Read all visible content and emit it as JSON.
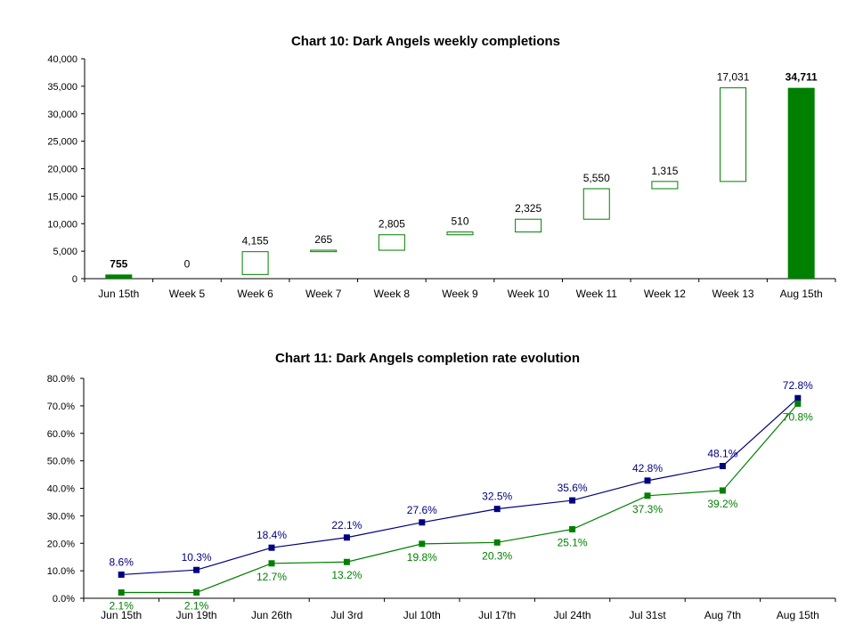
{
  "colors": {
    "green": "#008000",
    "navy": "#000080",
    "axis": "#000000"
  },
  "chart_data": [
    {
      "type": "bar",
      "subtype": "waterfall",
      "title": "Chart 10: Dark Angels weekly completions",
      "categories": [
        "Jun 15th",
        "Week 5",
        "Week 6",
        "Week 7",
        "Week 8",
        "Week 9",
        "Week 10",
        "Week 11",
        "Week 12",
        "Week 13",
        "Aug 15th"
      ],
      "values": [
        755,
        0,
        4155,
        265,
        2805,
        510,
        2325,
        5550,
        1315,
        17031,
        34711
      ],
      "value_labels": [
        "755",
        "0",
        "4,155",
        "265",
        "2,805",
        "510",
        "2,325",
        "5,550",
        "1,315",
        "17,031",
        "34,711"
      ],
      "bar_kind": [
        "total",
        "step",
        "step",
        "step",
        "step",
        "step",
        "step",
        "step",
        "step",
        "step",
        "total"
      ],
      "yticks": [
        "0",
        "5,000",
        "10,000",
        "15,000",
        "20,000",
        "25,000",
        "30,000",
        "35,000",
        "40,000"
      ],
      "ylim": [
        0,
        40000
      ],
      "grid": false,
      "legend": "none"
    },
    {
      "type": "line",
      "title": "Chart 11: Dark Angels completion rate evolution",
      "categories": [
        "Jun 15th",
        "Jun 19th",
        "Jun 26th",
        "Jul 3rd",
        "Jul 10th",
        "Jul 17th",
        "Jul 24th",
        "Jul 31st",
        "Aug 7th",
        "Aug 15th"
      ],
      "series": [
        {
          "color": "#000080",
          "values": [
            8.6,
            10.3,
            18.4,
            22.1,
            27.6,
            32.5,
            35.6,
            42.8,
            48.1,
            72.8
          ],
          "labels": [
            "8.6%",
            "10.3%",
            "18.4%",
            "22.1%",
            "27.6%",
            "32.5%",
            "35.6%",
            "42.8%",
            "48.1%",
            "72.8%"
          ]
        },
        {
          "color": "#008000",
          "values": [
            2.1,
            2.1,
            12.7,
            13.2,
            19.8,
            20.3,
            25.1,
            37.3,
            39.2,
            70.8
          ],
          "labels": [
            "2.1%",
            "2.1%",
            "12.7%",
            "13.2%",
            "19.8%",
            "20.3%",
            "25.1%",
            "37.3%",
            "39.2%",
            "70.8%"
          ]
        }
      ],
      "yticks": [
        "0.0%",
        "10.0%",
        "20.0%",
        "30.0%",
        "40.0%",
        "50.0%",
        "60.0%",
        "70.0%",
        "80.0%"
      ],
      "ylim": [
        0,
        80
      ],
      "grid": false,
      "legend": "none"
    }
  ]
}
